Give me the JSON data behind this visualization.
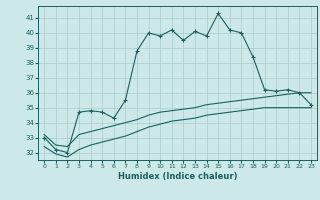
{
  "x": [
    0,
    1,
    2,
    3,
    4,
    5,
    6,
    7,
    8,
    9,
    10,
    11,
    12,
    13,
    14,
    15,
    16,
    17,
    18,
    19,
    20,
    21,
    22,
    23
  ],
  "main_line": [
    33.0,
    32.2,
    32.0,
    34.7,
    34.8,
    34.7,
    34.3,
    35.5,
    38.8,
    40.0,
    39.8,
    40.2,
    39.5,
    40.1,
    39.8,
    41.3,
    40.2,
    40.0,
    38.4,
    36.2,
    36.1,
    36.2,
    36.0,
    35.2
  ],
  "trend_high": [
    33.2,
    32.5,
    32.4,
    33.2,
    33.4,
    33.6,
    33.8,
    34.0,
    34.2,
    34.5,
    34.7,
    34.8,
    34.9,
    35.0,
    35.2,
    35.3,
    35.4,
    35.5,
    35.6,
    35.7,
    35.8,
    35.9,
    36.0,
    36.0
  ],
  "trend_low": [
    32.4,
    31.9,
    31.7,
    32.2,
    32.5,
    32.7,
    32.9,
    33.1,
    33.4,
    33.7,
    33.9,
    34.1,
    34.2,
    34.3,
    34.5,
    34.6,
    34.7,
    34.8,
    34.9,
    35.0,
    35.0,
    35.0,
    35.0,
    35.0
  ],
  "bg_color": "#cce8e8",
  "grid_color": "#aacccc",
  "line_color": "#1a6060",
  "xlabel": "Humidex (Indice chaleur)",
  "ylim": [
    31.5,
    41.8
  ],
  "xlim": [
    -0.5,
    23.5
  ],
  "yticks": [
    32,
    33,
    34,
    35,
    36,
    37,
    38,
    39,
    40,
    41
  ],
  "xticks": [
    0,
    1,
    2,
    3,
    4,
    5,
    6,
    7,
    8,
    9,
    10,
    11,
    12,
    13,
    14,
    15,
    16,
    17,
    18,
    19,
    20,
    21,
    22,
    23
  ]
}
